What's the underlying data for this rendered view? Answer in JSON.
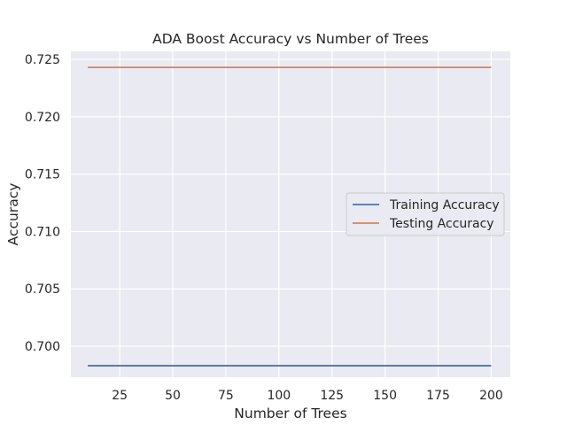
{
  "chart_data": {
    "type": "line",
    "title": "ADA Boost Accuracy vs Number of Trees",
    "xlabel": "Number of Trees",
    "ylabel": "Accuracy",
    "xlim": [
      2,
      209
    ],
    "ylim": [
      0.6973,
      0.7257
    ],
    "xticks": [
      25,
      50,
      75,
      100,
      125,
      150,
      175,
      200
    ],
    "xtick_labels": [
      "25",
      "50",
      "75",
      "100",
      "125",
      "150",
      "175",
      "200"
    ],
    "yticks": [
      0.7,
      0.705,
      0.71,
      0.715,
      0.72,
      0.725
    ],
    "ytick_labels": [
      "0.700",
      "0.705",
      "0.710",
      "0.715",
      "0.720",
      "0.725"
    ],
    "grid": true,
    "legend_position": "center-right",
    "x": [
      10,
      200
    ],
    "series": [
      {
        "name": "Training Accuracy",
        "color": "#4c72b0",
        "values": [
          0.6983,
          0.6983
        ]
      },
      {
        "name": "Testing Accuracy",
        "color": "#dd8452",
        "values": [
          0.7243,
          0.7243
        ]
      }
    ],
    "colors": {
      "plot_background": "#eaeaf2",
      "grid": "#ffffff",
      "text": "#262626"
    }
  }
}
